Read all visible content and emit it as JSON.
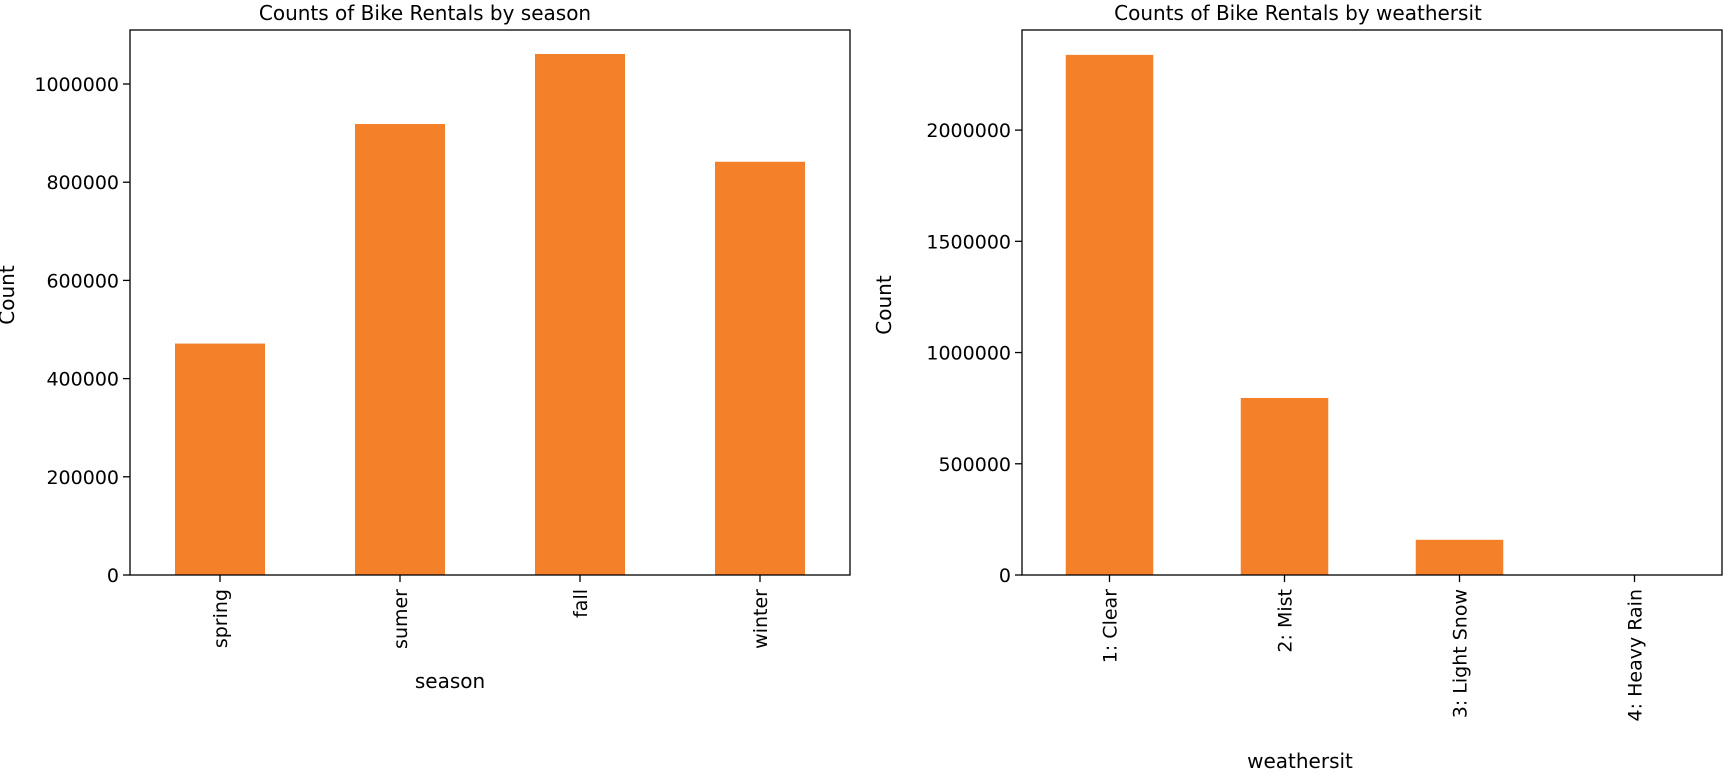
{
  "chart_data": [
    {
      "type": "bar",
      "title": "Counts of Bike Rentals by season",
      "xlabel": "season",
      "ylabel": "Count",
      "categories": [
        "spring",
        "sumer",
        "fall",
        "winter"
      ],
      "values": [
        471348,
        918589,
        1061129,
        841613
      ],
      "ylim": [
        0,
        1110000
      ],
      "yticks": [
        0,
        200000,
        400000,
        600000,
        800000,
        1000000
      ],
      "ytick_labels": [
        "0",
        "200000",
        "400000",
        "600000",
        "800000",
        "1000000"
      ],
      "bar_color": "#f5802a",
      "grid": false,
      "legend": "none"
    },
    {
      "type": "bar",
      "title": "Counts of Bike Rentals by weathersit",
      "xlabel": "weathersit",
      "ylabel": "Count",
      "categories": [
        "1: Clear",
        "2: Mist",
        "3: Light Snow",
        "4: Heavy Rain"
      ],
      "values": [
        2338173,
        795952,
        158331,
        223
      ],
      "ylim": [
        0,
        2450000
      ],
      "yticks": [
        0,
        500000,
        1000000,
        1500000,
        2000000
      ],
      "ytick_labels": [
        "0",
        "500000",
        "1000000",
        "1500000",
        "2000000"
      ],
      "bar_color": "#f5802a",
      "grid": false,
      "legend": "none"
    }
  ]
}
